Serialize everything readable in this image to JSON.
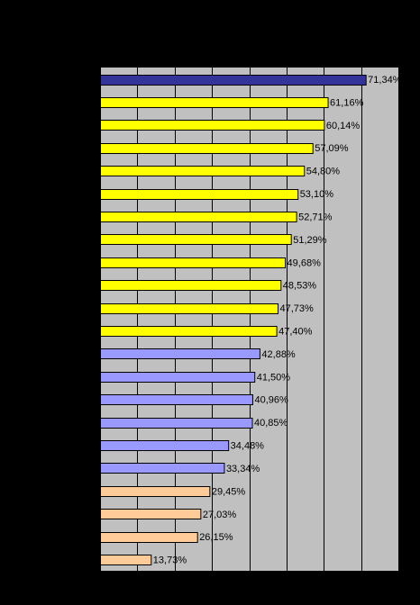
{
  "chart_data": {
    "type": "bar",
    "orientation": "horizontal",
    "title": "",
    "xlabel": "",
    "ylabel": "",
    "xlim": [
      0,
      80
    ],
    "grid": true,
    "legend": "none",
    "categories": [
      "",
      "",
      "",
      "",
      "",
      "",
      "",
      "",
      "",
      "",
      "",
      "",
      "",
      "",
      "",
      "",
      "",
      "",
      "",
      "",
      "",
      ""
    ],
    "values": [
      71.34,
      61.16,
      60.14,
      57.09,
      54.8,
      53.1,
      52.71,
      51.29,
      49.68,
      48.53,
      47.73,
      47.4,
      42.88,
      41.5,
      40.96,
      40.85,
      34.48,
      33.34,
      29.45,
      27.03,
      26.15,
      13.73
    ],
    "value_labels": [
      "71,34%",
      "61,16%",
      "60,14%",
      "57,09%",
      "54,80%",
      "53,10%",
      "52,71%",
      "51,29%",
      "49,68%",
      "48,53%",
      "47,73%",
      "47,40%",
      "42,88%",
      "41,50%",
      "40,96%",
      "40,85%",
      "34,48%",
      "33,34%",
      "29,45%",
      "27,03%",
      "26,15%",
      "13,73%"
    ],
    "bar_colors": [
      "#333399",
      "#FFFF00",
      "#FFFF00",
      "#FFFF00",
      "#FFFF00",
      "#FFFF00",
      "#FFFF00",
      "#FFFF00",
      "#FFFF00",
      "#FFFF00",
      "#FFFF00",
      "#FFFF00",
      "#9999FF",
      "#9999FF",
      "#9999FF",
      "#9999FF",
      "#9999FF",
      "#9999FF",
      "#FFCC99",
      "#FFCC99",
      "#FFCC99",
      "#FFCC99"
    ]
  },
  "colors": {
    "background": "#000000",
    "plot_area": "#C0C0C0",
    "gridline": "#000000",
    "bar_outline": "#000000",
    "label_text": "#000000"
  }
}
